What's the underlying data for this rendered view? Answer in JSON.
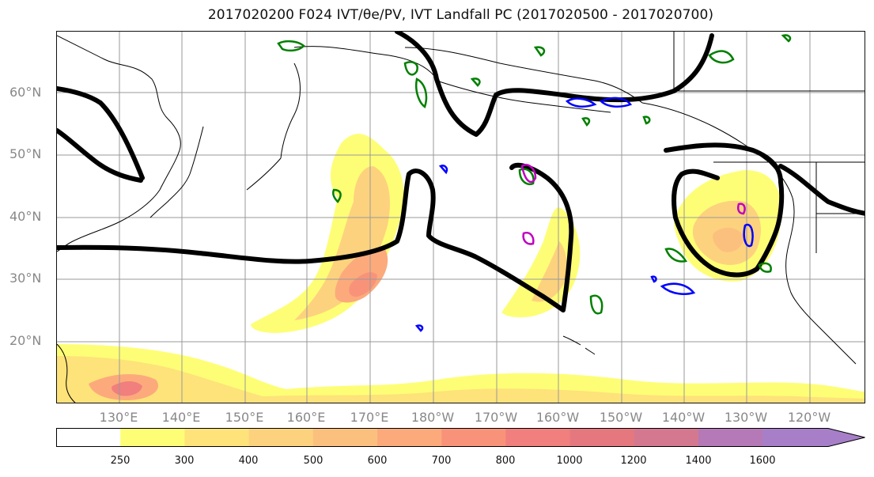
{
  "title": "2017020200 F024 IVT/θe/PV, IVT Landfall PC (2017020500 - 2017020700)",
  "lat_labels": [
    "60°N",
    "50°N",
    "40°N",
    "30°N",
    "20°N"
  ],
  "lon_labels": [
    "130°E",
    "140°E",
    "150°E",
    "160°E",
    "170°E",
    "180°W",
    "170°W",
    "160°W",
    "150°W",
    "140°W",
    "130°W",
    "120°W"
  ],
  "colorbar": {
    "ticks": [
      "250",
      "300",
      "400",
      "500",
      "600",
      "700",
      "800",
      "1000",
      "1200",
      "1400",
      "1600"
    ],
    "colors": [
      "#ffffff",
      "#fefe76",
      "#fde37a",
      "#fdd27e",
      "#fcc07e",
      "#fcaa7c",
      "#f8937a",
      "#f07f7d",
      "#e5787f",
      "#d4788f",
      "#b479b6",
      "#a77fc8"
    ],
    "extend": "max"
  },
  "colors": {
    "theta_e_contour": "#000000",
    "pv_contours": [
      "#008000",
      "#0000ff",
      "#bf00bf"
    ],
    "coastline": "#000000",
    "gridline": "#999999"
  }
}
